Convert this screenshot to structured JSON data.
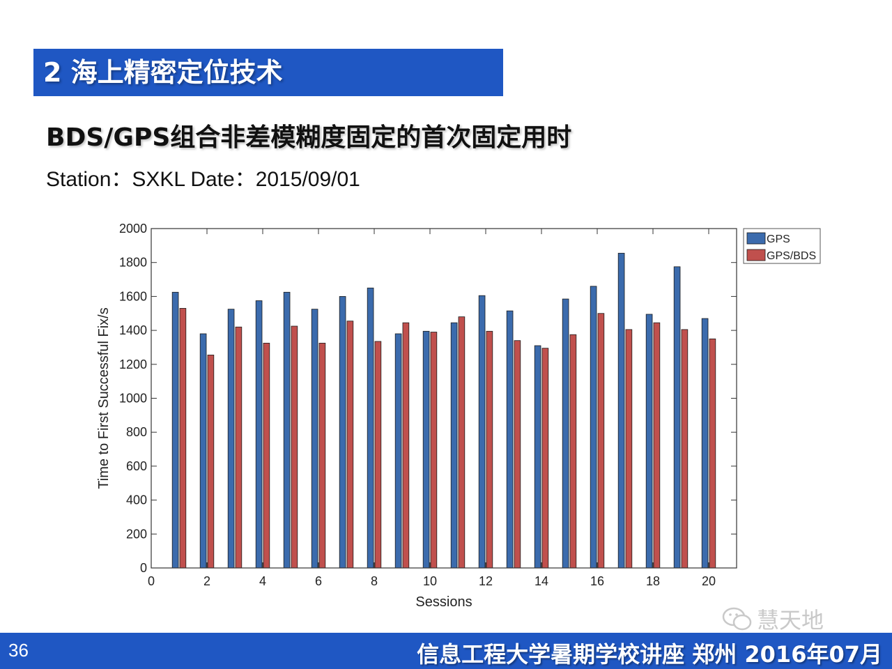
{
  "section": {
    "title": "2 海上精密定位技术"
  },
  "heading": "BDS/GPS组合非差模糊度固定的首次固定用时",
  "station_line": "Station：SXKL  Date：2015/09/01",
  "footer": {
    "page_number": "36",
    "text": "信息工程大学暑期学校讲座  郑州  2016年07月"
  },
  "watermark": {
    "text": "慧天地",
    "icon": "wechat-icon"
  },
  "colors": {
    "brand_blue": "#1f57c3",
    "gps": "#3b6bad",
    "gps_bds": "#c0504d"
  },
  "chart_data": {
    "type": "bar",
    "xlabel": "Sessions",
    "ylabel": "Time to First Successful Fix/s",
    "xlim": [
      0,
      21
    ],
    "ylim": [
      0,
      2000
    ],
    "xticks": [
      0,
      2,
      4,
      6,
      8,
      10,
      12,
      14,
      16,
      18,
      20
    ],
    "yticks": [
      0,
      200,
      400,
      600,
      800,
      1000,
      1200,
      1400,
      1600,
      1800,
      2000
    ],
    "legend_position": "top-right",
    "categories": [
      1,
      2,
      3,
      4,
      5,
      6,
      7,
      8,
      9,
      10,
      11,
      12,
      13,
      14,
      15,
      16,
      17,
      18,
      19,
      20
    ],
    "series": [
      {
        "name": "GPS",
        "color": "#3b6bad",
        "values": [
          1625,
          1380,
          1525,
          1575,
          1625,
          1525,
          1600,
          1650,
          1380,
          1395,
          1445,
          1605,
          1515,
          1310,
          1585,
          1660,
          1855,
          1495,
          1775,
          1470
        ]
      },
      {
        "name": "GPS/BDS",
        "color": "#c0504d",
        "values": [
          1530,
          1255,
          1420,
          1325,
          1425,
          1325,
          1455,
          1335,
          1445,
          1390,
          1480,
          1395,
          1340,
          1295,
          1375,
          1500,
          1405,
          1445,
          1405,
          1350
        ]
      }
    ]
  }
}
